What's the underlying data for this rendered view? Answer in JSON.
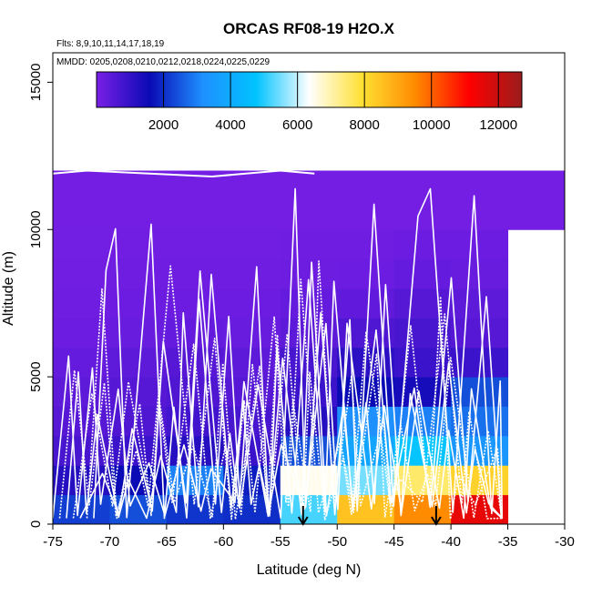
{
  "chart_data": {
    "type": "heatmap",
    "title": "ORCAS RF08-19 H2O.X",
    "subtitle_flights": "Flts: 8,9,10,11,14,17,18,19",
    "subtitle_dates": "MMDD: 0205,0208,0210,0212,0218,0224,0225,0229",
    "xlabel": "Latitude (deg N)",
    "ylabel": "Altitude (m)",
    "xlim": [
      -75,
      -30
    ],
    "ylim": [
      0,
      16000
    ],
    "x_ticks": [
      -75,
      -70,
      -65,
      -60,
      -55,
      -50,
      -45,
      -40,
      -35,
      -30
    ],
    "y_ticks": [
      0,
      5000,
      10000,
      15000
    ],
    "colorbar": {
      "min": 0,
      "max": 12700,
      "ticks": [
        2000,
        4000,
        6000,
        8000,
        10000,
        12000
      ],
      "stops": [
        "#7a1fe6",
        "#0a0ab4",
        "#1e90ff",
        "#00c3ff",
        "#ffffff",
        "#ffe033",
        "#ff8a00",
        "#ff0000",
        "#9b1c1c"
      ]
    },
    "grid": {
      "lat_edges": [
        -75,
        -70,
        -65,
        -60,
        -55,
        -50,
        -45,
        -40,
        -35,
        -30
      ],
      "alt_edges": [
        0,
        1000,
        2000,
        3000,
        4000,
        5000,
        6000,
        7000,
        8000,
        9000,
        10000,
        12000
      ],
      "values": [
        [
          2200,
          2400,
          2100,
          2000,
          5200,
          8500,
          9500,
          11500,
          null
        ],
        [
          1200,
          1600,
          3000,
          1800,
          6500,
          5500,
          7500,
          8200,
          null
        ],
        [
          700,
          900,
          1200,
          900,
          2400,
          3800,
          4800,
          3400,
          null
        ],
        [
          500,
          600,
          800,
          700,
          1200,
          3200,
          3000,
          2800,
          null
        ],
        [
          400,
          500,
          600,
          500,
          900,
          1600,
          1400,
          2400,
          null
        ],
        [
          300,
          400,
          500,
          400,
          700,
          1100,
          900,
          900,
          null
        ],
        [
          200,
          250,
          300,
          250,
          400,
          600,
          700,
          500,
          null
        ],
        [
          150,
          200,
          200,
          200,
          300,
          350,
          500,
          400,
          null
        ],
        [
          120,
          150,
          150,
          150,
          180,
          200,
          300,
          250,
          null
        ],
        [
          100,
          120,
          120,
          120,
          150,
          150,
          200,
          200,
          null
        ],
        [
          80,
          80,
          80,
          80,
          80,
          80,
          80,
          80,
          80
        ]
      ]
    },
    "landing_markers_lat": [
      -53,
      -41.3
    ],
    "track_color": "#ffffff"
  }
}
